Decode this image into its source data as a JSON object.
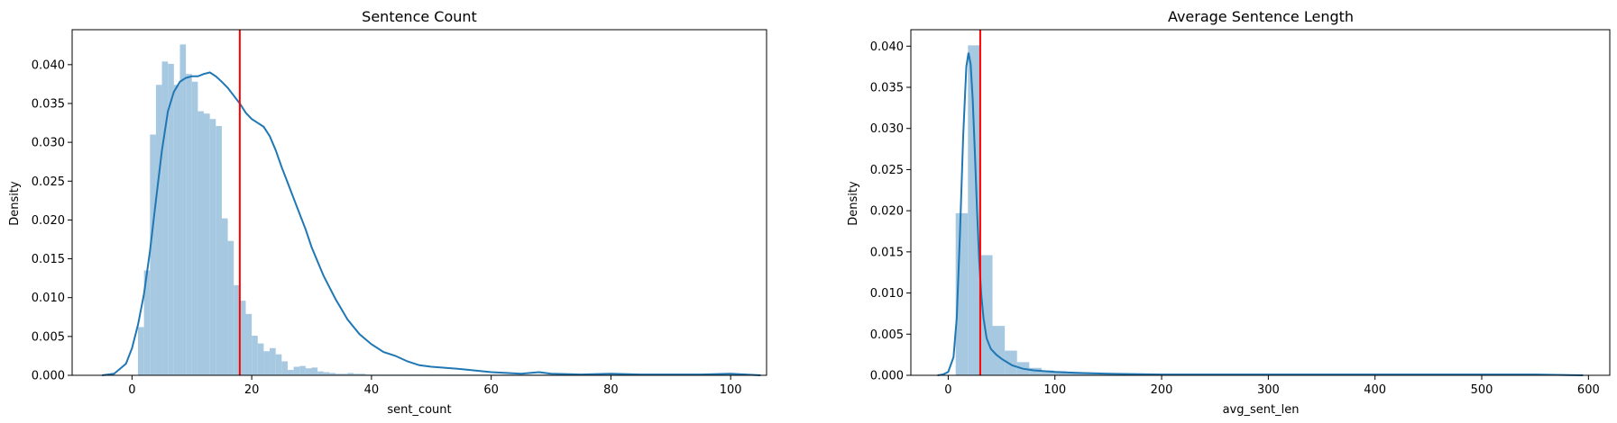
{
  "chart_data": [
    {
      "type": "histogram",
      "title": "Sentence Count",
      "xlabel": "sent_count",
      "ylabel": "Density",
      "xlim": [
        -10,
        106
      ],
      "ylim": [
        0,
        0.0445
      ],
      "xticks": [
        0,
        20,
        40,
        60,
        80,
        100
      ],
      "yticks": [
        0.0,
        0.005,
        0.01,
        0.015,
        0.02,
        0.025,
        0.03,
        0.035,
        0.04
      ],
      "ytick_labels": [
        "0.000",
        "0.005",
        "0.010",
        "0.015",
        "0.020",
        "0.025",
        "0.030",
        "0.035",
        "0.040"
      ],
      "grid": false,
      "bin_edges": [
        1,
        2,
        3,
        4,
        5,
        6,
        7,
        8,
        9,
        10,
        11,
        12,
        13,
        14,
        15,
        16,
        17,
        18,
        19,
        20,
        21,
        22,
        23,
        24,
        25,
        26,
        27,
        28,
        29,
        30,
        31,
        32,
        33,
        34,
        35,
        36,
        37,
        38,
        39,
        40,
        41,
        42,
        43,
        44,
        45,
        46,
        47,
        48,
        49,
        50,
        51,
        52,
        53,
        54,
        55,
        56,
        57,
        58,
        59,
        60,
        61,
        62,
        63,
        64,
        65,
        66,
        67,
        68,
        69,
        70,
        71,
        72,
        73,
        74,
        75,
        76,
        77,
        78,
        79,
        80,
        81,
        82,
        83,
        84,
        85,
        86,
        87,
        88,
        89,
        90,
        91,
        92,
        93,
        94,
        95,
        96,
        97,
        98,
        99,
        100,
        101,
        102,
        103,
        104
      ],
      "bin_values": [
        0.0062,
        0.0135,
        0.031,
        0.0374,
        0.0404,
        0.0401,
        0.0374,
        0.0426,
        0.0388,
        0.0378,
        0.034,
        0.0337,
        0.033,
        0.0321,
        0.0202,
        0.0173,
        0.0116,
        0.0096,
        0.0079,
        0.0051,
        0.0041,
        0.0031,
        0.0035,
        0.0027,
        0.0018,
        0.0007,
        0.0011,
        0.0012,
        0.0009,
        0.001,
        0.0005,
        0.0004,
        0.0003,
        0.0002,
        0.0002,
        0.0003,
        0.0002,
        0.0002,
        0.0001,
        0.0001,
        0.0001,
        0.0001,
        0.0001,
        0.0001,
        0.0001,
        0.0001,
        0.0001,
        0.0001,
        0.0001,
        0.0001,
        0.0001,
        0.0001,
        0.0001,
        0.0001,
        0.0001,
        0.0001,
        0.0001,
        0.0001,
        0.0001,
        0.0001,
        0.0001,
        0.0001,
        0.0001,
        0.0001,
        0.0001,
        0.0001,
        0.0001,
        0.0001,
        0.0001,
        0.0001,
        0.0001,
        0.0001,
        0.0001,
        0.0001,
        0.0001,
        0.0001,
        0.0001,
        0.0001,
        0.0001,
        0.0001,
        0.0001,
        0.0001,
        0.0001,
        0.0001,
        0.0001,
        0.0001,
        0.0001,
        0.0001,
        0.0001,
        0.0001,
        0.0001,
        0.0001,
        0.0001,
        0.0001,
        0.0001,
        0.0001,
        0.0001,
        0.0001,
        0.0001,
        0.0001,
        0.0001,
        0.0001,
        0.0001
      ],
      "kde_x": [
        -5,
        -3,
        -1,
        0,
        1,
        2,
        3,
        4,
        5,
        6,
        7,
        8,
        9,
        10,
        11,
        12,
        13,
        14,
        15,
        16,
        17,
        18,
        19,
        20,
        21,
        22,
        23,
        24,
        25,
        26,
        27,
        28,
        29,
        30,
        32,
        34,
        36,
        38,
        40,
        42,
        44,
        46,
        48,
        50,
        55,
        60,
        65,
        68,
        70,
        75,
        80,
        85,
        90,
        95,
        100,
        105
      ],
      "kde_y": [
        0.0,
        0.0002,
        0.0015,
        0.0035,
        0.0065,
        0.0105,
        0.016,
        0.0225,
        0.029,
        0.034,
        0.0365,
        0.0378,
        0.0383,
        0.0385,
        0.0385,
        0.0388,
        0.039,
        0.0385,
        0.0378,
        0.037,
        0.036,
        0.035,
        0.0338,
        0.033,
        0.0325,
        0.032,
        0.0308,
        0.029,
        0.0268,
        0.0248,
        0.0228,
        0.0208,
        0.0188,
        0.0165,
        0.0128,
        0.0098,
        0.0072,
        0.0053,
        0.004,
        0.003,
        0.0025,
        0.0018,
        0.0013,
        0.0011,
        0.0008,
        0.0004,
        0.0002,
        0.0004,
        0.0002,
        0.0001,
        0.0002,
        0.0001,
        0.0001,
        0.0001,
        0.0002,
        0.0
      ],
      "vline": 18,
      "colors": {
        "bars": "#a6c8e1",
        "kde": "#1f77b4",
        "vline": "#ff0000"
      }
    },
    {
      "type": "histogram",
      "title": "Average Sentence Length",
      "xlabel": "avg_sent_len",
      "ylabel": "Density",
      "xlim": [
        -35,
        620
      ],
      "ylim": [
        0,
        0.042
      ],
      "xticks": [
        0,
        100,
        200,
        300,
        400,
        500,
        600
      ],
      "yticks": [
        0.0,
        0.005,
        0.01,
        0.015,
        0.02,
        0.025,
        0.03,
        0.035,
        0.04
      ],
      "ytick_labels": [
        "0.000",
        "0.005",
        "0.010",
        "0.015",
        "0.020",
        "0.025",
        "0.030",
        "0.035",
        "0.040"
      ],
      "grid": false,
      "bin_edges": [
        7,
        18.5,
        30,
        41.5,
        53,
        64.5,
        76,
        87.5,
        99,
        110.5,
        122,
        133.5,
        145,
        156.5,
        168,
        179.5,
        191,
        202.5,
        214,
        225.5,
        237,
        248.5,
        260,
        271.5,
        283,
        294.5,
        306,
        317.5,
        329,
        340.5,
        352,
        363.5,
        375,
        386.5,
        398,
        409.5,
        421,
        432.5,
        444,
        455.5,
        467,
        478.5,
        490,
        501.5,
        513,
        524.5,
        536,
        547.5,
        559,
        570.5,
        582,
        593.5
      ],
      "bin_values": [
        0.0197,
        0.0401,
        0.0146,
        0.006,
        0.003,
        0.0016,
        0.0009,
        0.0006,
        0.0005,
        0.0004,
        0.0003,
        0.0002,
        0.0002,
        0.0002,
        0.0002,
        0.0001,
        0.0001,
        0.0001,
        0.0001,
        0.0001,
        0.0001,
        0.0001,
        0.0001,
        0.0001,
        0.0001,
        0.0001,
        0.0001,
        0.0001,
        0.0001,
        0.0001,
        0.0001,
        0.0001,
        0.0001,
        0.0001,
        0.0001,
        0.0001,
        0.0001,
        0.0001,
        0.0001,
        0.0001,
        0.0001,
        0.0001,
        0.0001,
        0.0001,
        0.0001,
        0.0001,
        0.0001,
        0.0001,
        0.0001,
        0.0001,
        0.0001
      ],
      "kde_x": [
        -10,
        -5,
        0,
        5,
        8,
        11,
        14,
        17,
        19,
        21,
        23,
        25,
        27,
        29,
        31,
        33,
        36,
        40,
        45,
        50,
        55,
        60,
        70,
        80,
        90,
        100,
        120,
        150,
        200,
        250,
        300,
        350,
        400,
        450,
        500,
        550,
        595
      ],
      "kde_y": [
        0.0,
        0.0001,
        0.0004,
        0.0022,
        0.007,
        0.017,
        0.029,
        0.0375,
        0.0392,
        0.0378,
        0.0335,
        0.027,
        0.02,
        0.014,
        0.0098,
        0.007,
        0.0045,
        0.0032,
        0.0025,
        0.002,
        0.0016,
        0.0012,
        0.0008,
        0.0006,
        0.0005,
        0.0004,
        0.0003,
        0.0002,
        0.0001,
        0.0001,
        0.0001,
        0.0001,
        0.0001,
        0.0001,
        0.0001,
        0.0001,
        0.0
      ],
      "vline": 30,
      "colors": {
        "bars": "#a6c8e1",
        "kde": "#1f77b4",
        "vline": "#ff0000"
      }
    }
  ]
}
